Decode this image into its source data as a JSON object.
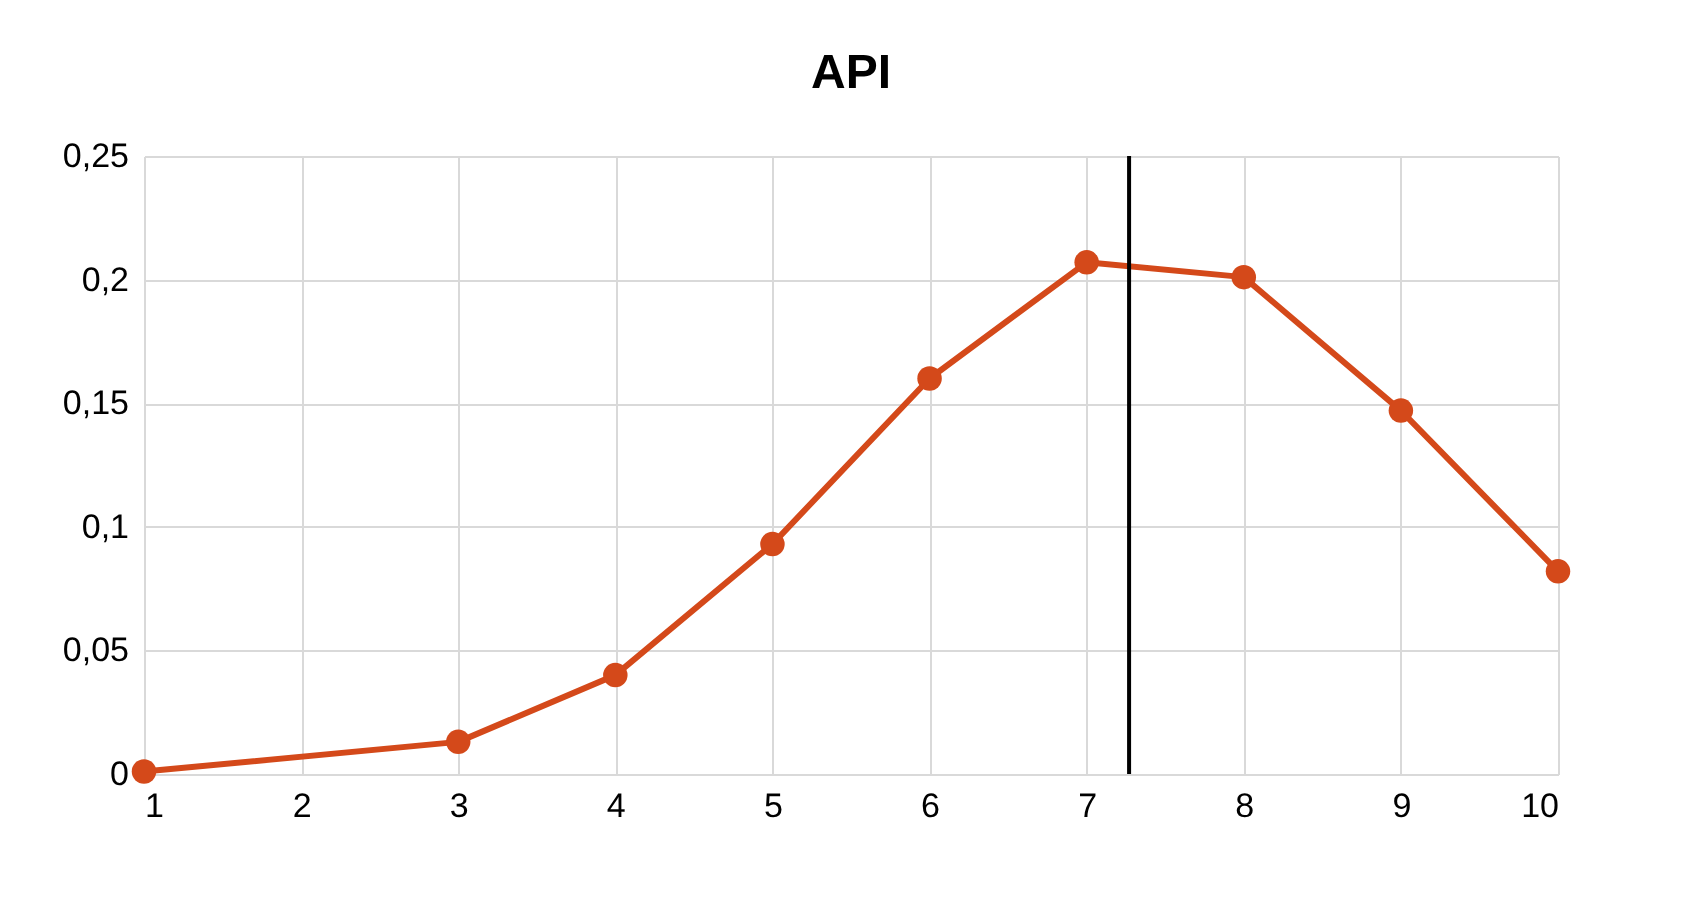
{
  "chart_data": {
    "type": "line",
    "title": "API",
    "x": [
      1,
      3,
      4,
      5,
      6,
      7,
      8,
      9,
      10
    ],
    "series": [
      {
        "color": "#d4491a",
        "values": [
          0.001,
          0.013,
          0.04,
          0.093,
          0.16,
          0.207,
          0.201,
          0.147,
          0.082
        ]
      }
    ],
    "xlim": [
      1,
      10
    ],
    "xticks": [
      1,
      2,
      3,
      4,
      5,
      6,
      7,
      8,
      9,
      10
    ],
    "ylim": [
      0,
      0.25
    ],
    "yticks": [
      0,
      {
        "value": 0.05,
        "label": "0,05"
      },
      {
        "value": 0.1,
        "label": "0,1"
      },
      {
        "value": 0.15,
        "label": "0,15"
      },
      {
        "value": 0.2,
        "label": "0,2"
      },
      {
        "value": 0.25,
        "label": "0,25"
      }
    ],
    "ref_lines": [
      {
        "axis": "x",
        "value": 7.27,
        "color": "#000000"
      }
    ],
    "grid": true,
    "marker": "circle",
    "line_style": "solid"
  }
}
